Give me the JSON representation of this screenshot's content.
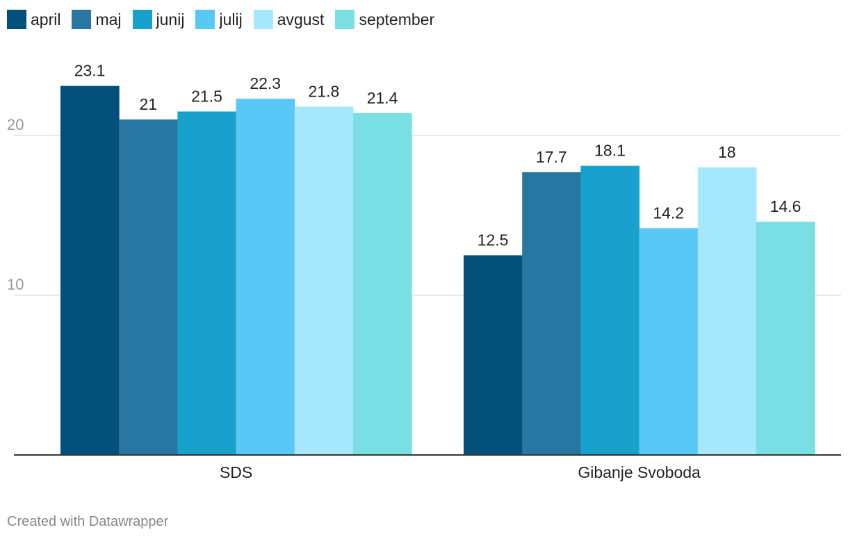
{
  "chart_data": {
    "type": "bar",
    "categories": [
      "SDS",
      "Gibanje Svoboda"
    ],
    "series": [
      {
        "name": "april",
        "color": "#03507a",
        "values": [
          23.1,
          12.5
        ]
      },
      {
        "name": "maj",
        "color": "#2877a3",
        "values": [
          21,
          17.7
        ]
      },
      {
        "name": "junij",
        "color": "#18a1cd",
        "values": [
          21.5,
          18.1
        ]
      },
      {
        "name": "julij",
        "color": "#59c8f5",
        "values": [
          22.3,
          14.2
        ]
      },
      {
        "name": "avgust",
        "color": "#a5e7fd",
        "values": [
          21.8,
          18
        ]
      },
      {
        "name": "september",
        "color": "#79dfe3",
        "values": [
          21.4,
          14.6
        ]
      }
    ],
    "value_labels": {
      "SDS": [
        "23.1",
        "21",
        "21.5",
        "22.3",
        "21.8",
        "21.4"
      ],
      "Gibanje Svoboda": [
        "12.5",
        "17.7",
        "18.1",
        "14.2",
        "18",
        "14.6"
      ]
    },
    "yticks": [
      10,
      20
    ],
    "ylim": [
      0,
      25
    ],
    "grid": true,
    "legend_position": "top-left",
    "title": "",
    "xlabel": "",
    "ylabel": ""
  },
  "footer": {
    "credit": "Created with Datawrapper"
  }
}
